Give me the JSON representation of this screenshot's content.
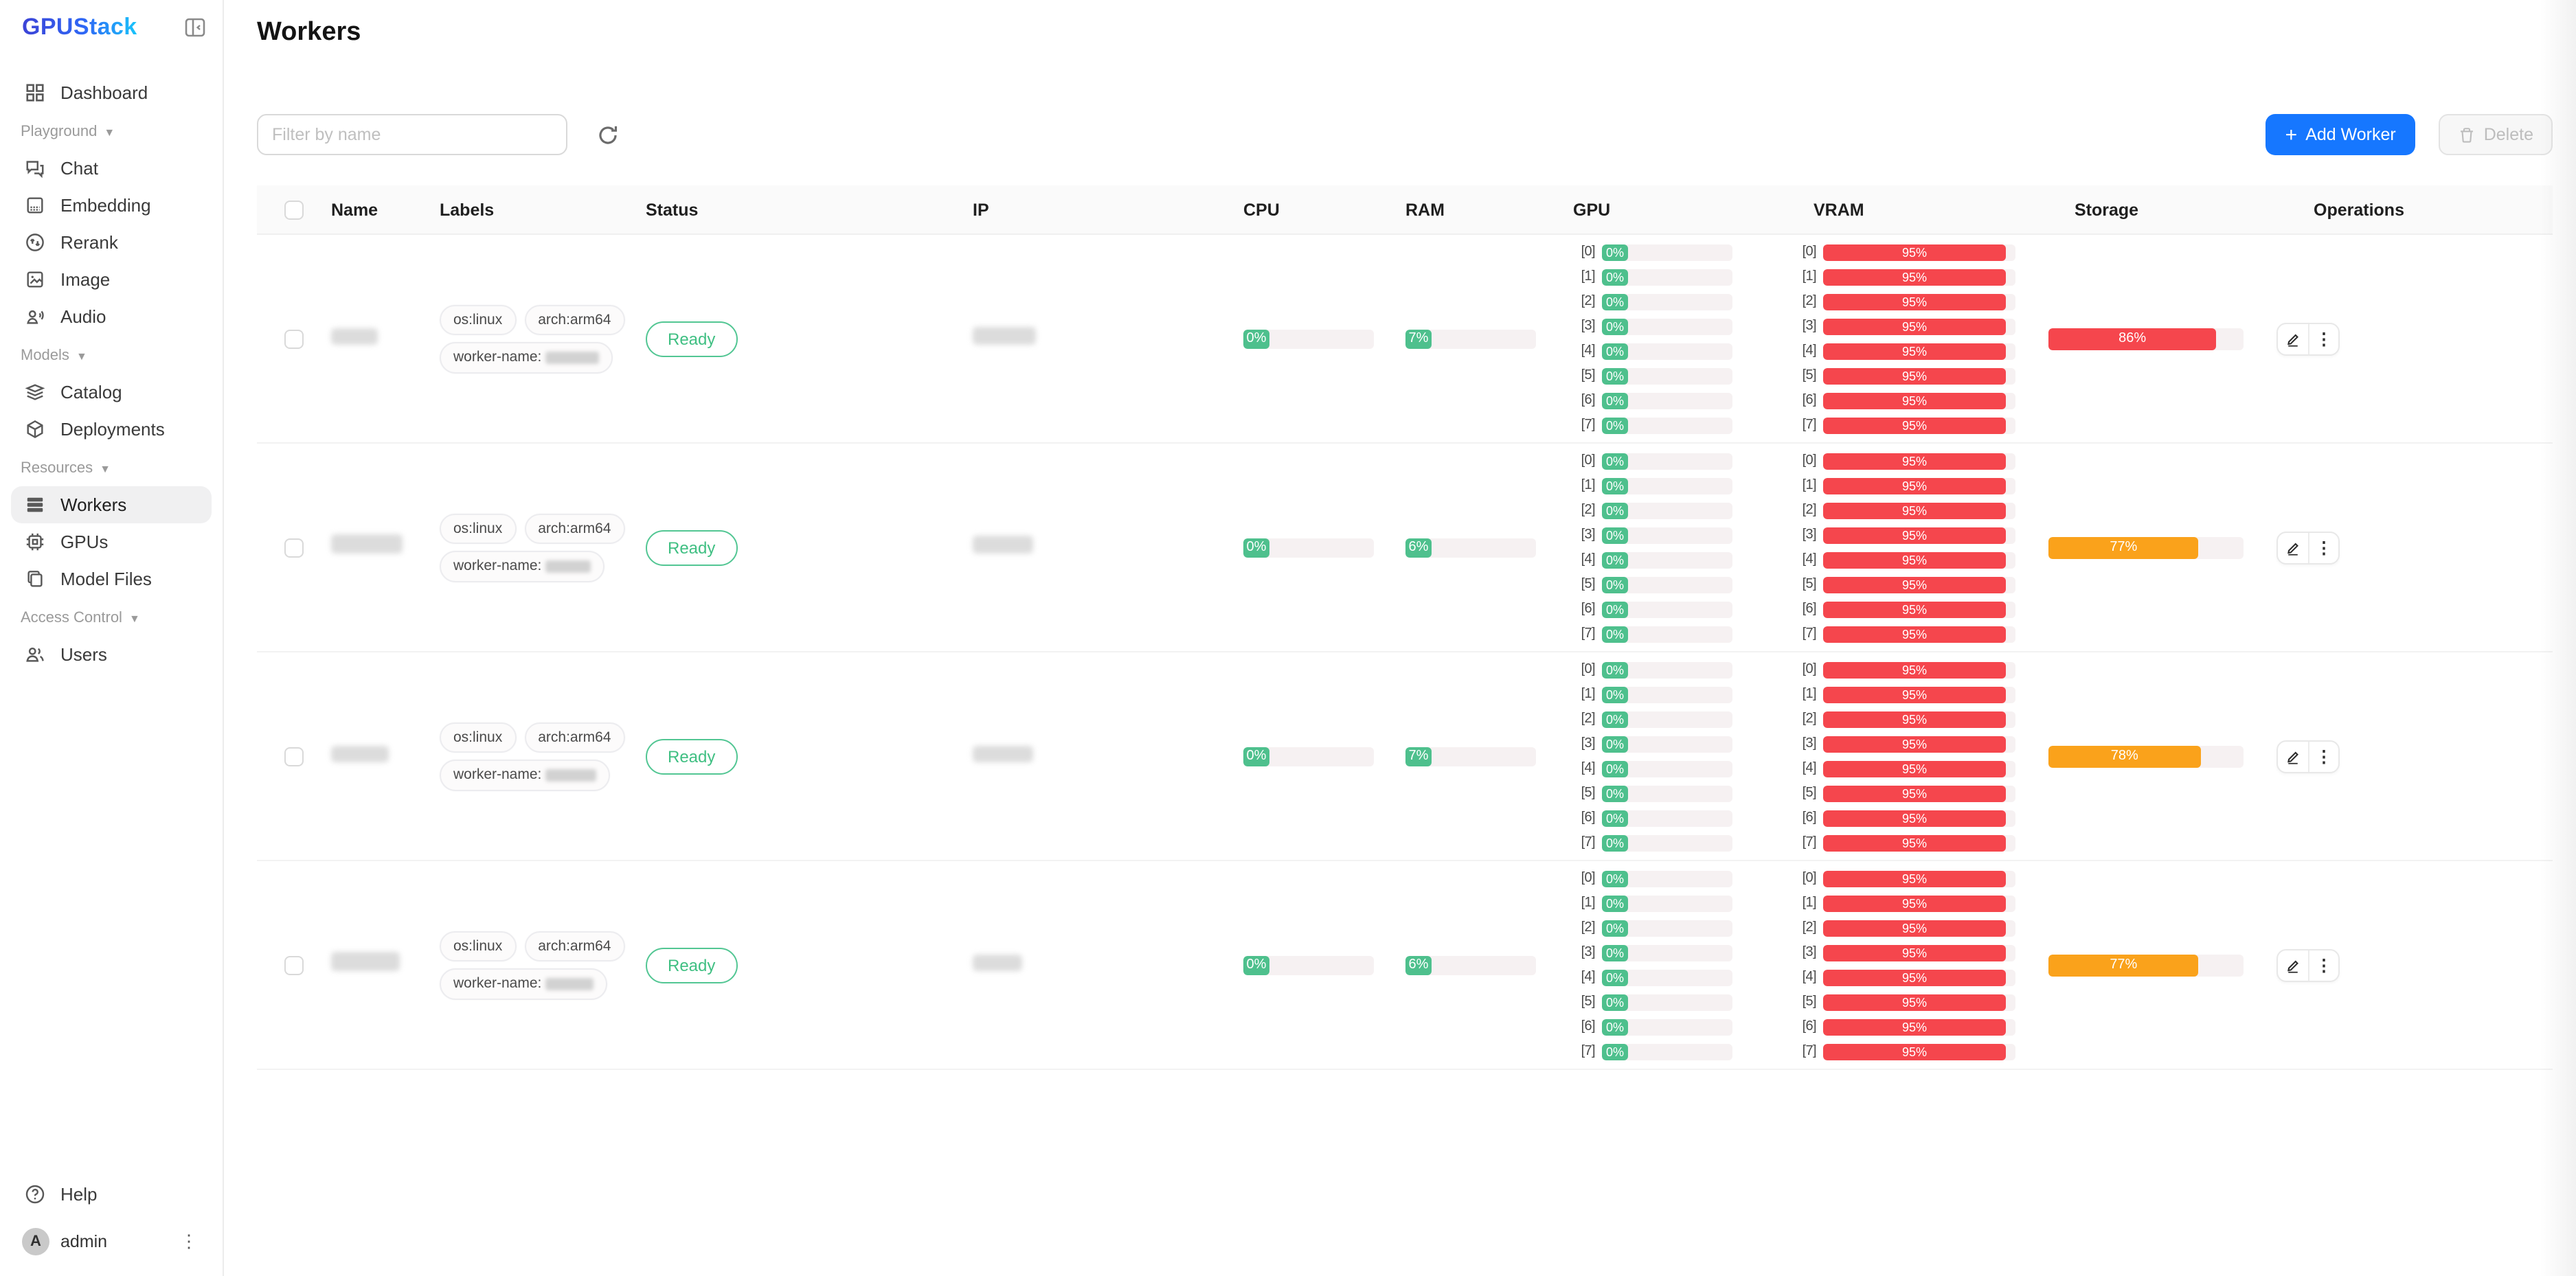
{
  "colors": {
    "accent_blue": "#1677ff",
    "success_green": "#4ec08d",
    "danger_red": "#f5464d",
    "warning_orange": "#faa21b",
    "meter_track": "#f6f1f2"
  },
  "sidebar": {
    "logo": "GPUStack",
    "nav": [
      {
        "type": "item",
        "icon": "dashboard-icon",
        "label": "Dashboard",
        "active": false
      },
      {
        "type": "group",
        "label": "Playground"
      },
      {
        "type": "item",
        "icon": "chat-icon",
        "label": "Chat",
        "active": false
      },
      {
        "type": "item",
        "icon": "embedding-icon",
        "label": "Embedding",
        "active": false
      },
      {
        "type": "item",
        "icon": "rerank-icon",
        "label": "Rerank",
        "active": false
      },
      {
        "type": "item",
        "icon": "image-icon",
        "label": "Image",
        "active": false
      },
      {
        "type": "item",
        "icon": "audio-icon",
        "label": "Audio",
        "active": false
      },
      {
        "type": "group",
        "label": "Models"
      },
      {
        "type": "item",
        "icon": "catalog-icon",
        "label": "Catalog",
        "active": false
      },
      {
        "type": "item",
        "icon": "deployments-icon",
        "label": "Deployments",
        "active": false
      },
      {
        "type": "group",
        "label": "Resources"
      },
      {
        "type": "item",
        "icon": "workers-icon",
        "label": "Workers",
        "active": true
      },
      {
        "type": "item",
        "icon": "gpus-icon",
        "label": "GPUs",
        "active": false
      },
      {
        "type": "item",
        "icon": "model-files-icon",
        "label": "Model Files",
        "active": false
      },
      {
        "type": "group",
        "label": "Access Control"
      },
      {
        "type": "item",
        "icon": "users-icon",
        "label": "Users",
        "active": false
      }
    ],
    "footer": {
      "help_label": "Help",
      "user_name": "admin",
      "avatar_initial": "A"
    }
  },
  "page": {
    "title": "Workers"
  },
  "toolbar": {
    "filter_placeholder": "Filter by name",
    "add_worker_label": "Add Worker",
    "delete_label": "Delete"
  },
  "table": {
    "columns": [
      "Name",
      "Labels",
      "Status",
      "IP",
      "CPU",
      "RAM",
      "GPU",
      "VRAM",
      "Storage",
      "Operations"
    ]
  },
  "workers": [
    {
      "labels": [
        "os:linux",
        "arch:arm64"
      ],
      "worker_name_prefix": "worker-name:",
      "status": "Ready",
      "cpu": {
        "label": "0%",
        "value": 0
      },
      "ram": {
        "label": "7%",
        "value": 7
      },
      "gpu": [
        {
          "index": "[0]",
          "label": "0%",
          "value": 0
        },
        {
          "index": "[1]",
          "label": "0%",
          "value": 0
        },
        {
          "index": "[2]",
          "label": "0%",
          "value": 0
        },
        {
          "index": "[3]",
          "label": "0%",
          "value": 0
        },
        {
          "index": "[4]",
          "label": "0%",
          "value": 0
        },
        {
          "index": "[5]",
          "label": "0%",
          "value": 0
        },
        {
          "index": "[6]",
          "label": "0%",
          "value": 0
        },
        {
          "index": "[7]",
          "label": "0%",
          "value": 0
        }
      ],
      "vram": [
        {
          "index": "[0]",
          "label": "95%",
          "value": 95
        },
        {
          "index": "[1]",
          "label": "95%",
          "value": 95
        },
        {
          "index": "[2]",
          "label": "95%",
          "value": 95
        },
        {
          "index": "[3]",
          "label": "95%",
          "value": 95
        },
        {
          "index": "[4]",
          "label": "95%",
          "value": 95
        },
        {
          "index": "[5]",
          "label": "95%",
          "value": 95
        },
        {
          "index": "[6]",
          "label": "95%",
          "value": 95
        },
        {
          "index": "[7]",
          "label": "95%",
          "value": 95
        }
      ],
      "storage": {
        "label": "86%",
        "value": 86,
        "level": "danger"
      },
      "redact": {
        "name_w": 34,
        "name_h": 12,
        "ip_w": 46,
        "ip_h": 13,
        "wn_w": 39
      }
    },
    {
      "labels": [
        "os:linux",
        "arch:arm64"
      ],
      "worker_name_prefix": "worker-name:",
      "status": "Ready",
      "cpu": {
        "label": "0%",
        "value": 0
      },
      "ram": {
        "label": "6%",
        "value": 6
      },
      "gpu": [
        {
          "index": "[0]",
          "label": "0%",
          "value": 0
        },
        {
          "index": "[1]",
          "label": "0%",
          "value": 0
        },
        {
          "index": "[2]",
          "label": "0%",
          "value": 0
        },
        {
          "index": "[3]",
          "label": "0%",
          "value": 0
        },
        {
          "index": "[4]",
          "label": "0%",
          "value": 0
        },
        {
          "index": "[5]",
          "label": "0%",
          "value": 0
        },
        {
          "index": "[6]",
          "label": "0%",
          "value": 0
        },
        {
          "index": "[7]",
          "label": "0%",
          "value": 0
        }
      ],
      "vram": [
        {
          "index": "[0]",
          "label": "95%",
          "value": 95
        },
        {
          "index": "[1]",
          "label": "95%",
          "value": 95
        },
        {
          "index": "[2]",
          "label": "95%",
          "value": 95
        },
        {
          "index": "[3]",
          "label": "95%",
          "value": 95
        },
        {
          "index": "[4]",
          "label": "95%",
          "value": 95
        },
        {
          "index": "[5]",
          "label": "95%",
          "value": 95
        },
        {
          "index": "[6]",
          "label": "95%",
          "value": 95
        },
        {
          "index": "[7]",
          "label": "95%",
          "value": 95
        }
      ],
      "storage": {
        "label": "77%",
        "value": 77,
        "level": "warning"
      },
      "redact": {
        "name_w": 52,
        "name_h": 14,
        "ip_w": 44,
        "ip_h": 13,
        "wn_w": 33
      }
    },
    {
      "labels": [
        "os:linux",
        "arch:arm64"
      ],
      "worker_name_prefix": "worker-name:",
      "status": "Ready",
      "cpu": {
        "label": "0%",
        "value": 0
      },
      "ram": {
        "label": "7%",
        "value": 7
      },
      "gpu": [
        {
          "index": "[0]",
          "label": "0%",
          "value": 0
        },
        {
          "index": "[1]",
          "label": "0%",
          "value": 0
        },
        {
          "index": "[2]",
          "label": "0%",
          "value": 0
        },
        {
          "index": "[3]",
          "label": "0%",
          "value": 0
        },
        {
          "index": "[4]",
          "label": "0%",
          "value": 0
        },
        {
          "index": "[5]",
          "label": "0%",
          "value": 0
        },
        {
          "index": "[6]",
          "label": "0%",
          "value": 0
        },
        {
          "index": "[7]",
          "label": "0%",
          "value": 0
        }
      ],
      "vram": [
        {
          "index": "[0]",
          "label": "95%",
          "value": 95
        },
        {
          "index": "[1]",
          "label": "95%",
          "value": 95
        },
        {
          "index": "[2]",
          "label": "95%",
          "value": 95
        },
        {
          "index": "[3]",
          "label": "95%",
          "value": 95
        },
        {
          "index": "[4]",
          "label": "95%",
          "value": 95
        },
        {
          "index": "[5]",
          "label": "95%",
          "value": 95
        },
        {
          "index": "[6]",
          "label": "95%",
          "value": 95
        },
        {
          "index": "[7]",
          "label": "95%",
          "value": 95
        }
      ],
      "storage": {
        "label": "78%",
        "value": 78,
        "level": "warning"
      },
      "redact": {
        "name_w": 42,
        "name_h": 12,
        "ip_w": 44,
        "ip_h": 12,
        "wn_w": 37
      }
    },
    {
      "labels": [
        "os:linux",
        "arch:arm64"
      ],
      "worker_name_prefix": "worker-name:",
      "status": "Ready",
      "cpu": {
        "label": "0%",
        "value": 0
      },
      "ram": {
        "label": "6%",
        "value": 6
      },
      "gpu": [
        {
          "index": "[0]",
          "label": "0%",
          "value": 0
        },
        {
          "index": "[1]",
          "label": "0%",
          "value": 0
        },
        {
          "index": "[2]",
          "label": "0%",
          "value": 0
        },
        {
          "index": "[3]",
          "label": "0%",
          "value": 0
        },
        {
          "index": "[4]",
          "label": "0%",
          "value": 0
        },
        {
          "index": "[5]",
          "label": "0%",
          "value": 0
        },
        {
          "index": "[6]",
          "label": "0%",
          "value": 0
        },
        {
          "index": "[7]",
          "label": "0%",
          "value": 0
        }
      ],
      "vram": [
        {
          "index": "[0]",
          "label": "95%",
          "value": 95
        },
        {
          "index": "[1]",
          "label": "95%",
          "value": 95
        },
        {
          "index": "[2]",
          "label": "95%",
          "value": 95
        },
        {
          "index": "[3]",
          "label": "95%",
          "value": 95
        },
        {
          "index": "[4]",
          "label": "95%",
          "value": 95
        },
        {
          "index": "[5]",
          "label": "95%",
          "value": 95
        },
        {
          "index": "[6]",
          "label": "95%",
          "value": 95
        },
        {
          "index": "[7]",
          "label": "95%",
          "value": 95
        }
      ],
      "storage": {
        "label": "77%",
        "value": 77,
        "level": "warning"
      },
      "redact": {
        "name_w": 50,
        "name_h": 14,
        "ip_w": 36,
        "ip_h": 12,
        "wn_w": 35
      }
    }
  ]
}
